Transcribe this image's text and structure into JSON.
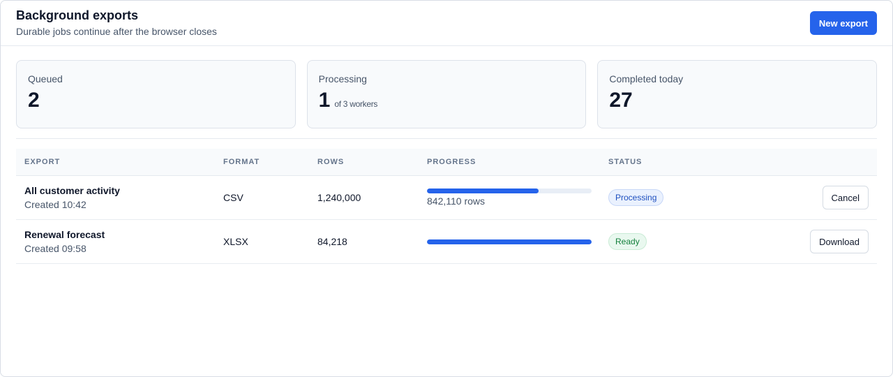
{
  "header": {
    "title": "Background exports",
    "subtitle": "Durable jobs continue after the browser closes",
    "new_export_label": "New export"
  },
  "stats": [
    {
      "label": "Queued",
      "value": "2",
      "sub": ""
    },
    {
      "label": "Processing",
      "value": "1",
      "sub": "of 3 workers"
    },
    {
      "label": "Completed today",
      "value": "27",
      "sub": ""
    }
  ],
  "table": {
    "columns": [
      "EXPORT",
      "FORMAT",
      "ROWS",
      "PROGRESS",
      "STATUS"
    ],
    "rows": [
      {
        "name": "All customer activity",
        "created": "Created 10:42",
        "format": "CSV",
        "rows": "1,240,000",
        "progress_fraction": 0.68,
        "progress_note": "842,110 rows",
        "status": "Processing",
        "action": "Cancel"
      },
      {
        "name": "Renewal forecast",
        "created": "Created 09:58",
        "format": "XLSX",
        "rows": "84,218",
        "progress_fraction": 1.0,
        "progress_note": "",
        "status": "Ready",
        "action": "Download"
      }
    ]
  },
  "colors": {
    "accent": "#2563eb",
    "processing_badge": "#eaf1fe",
    "ready_badge": "#e9f8ef"
  }
}
